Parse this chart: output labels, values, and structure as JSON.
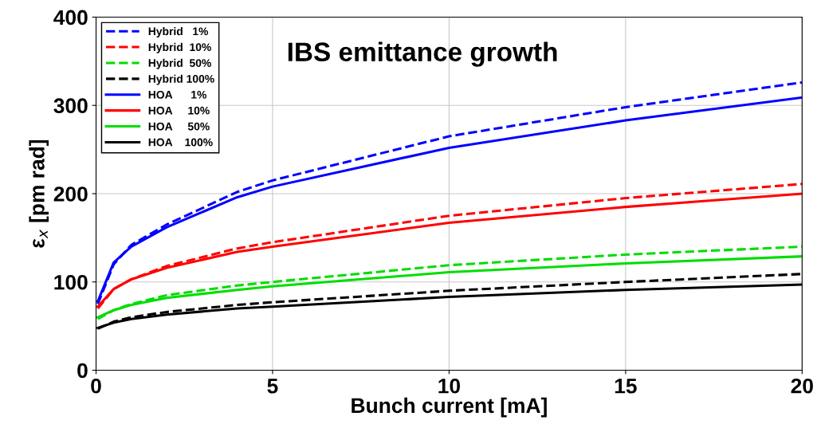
{
  "chart_data": {
    "type": "line",
    "xlabel": "Bunch current [mA]",
    "ylabel": "ε$_{x}$ [pm rad]",
    "annotations": [
      "IBS emittance growth"
    ],
    "x": [
      0.05,
      0.5,
      1,
      2,
      4,
      5,
      10,
      15,
      20
    ],
    "xlim": [
      0,
      20
    ],
    "xticks": [
      0,
      5,
      10,
      15,
      20
    ],
    "ylim": [
      0,
      400
    ],
    "yticks": [
      0,
      100,
      200,
      300,
      400
    ],
    "grid": true,
    "legend": "top left",
    "marker": "none",
    "series": [
      {
        "name": "Hybrid   1%",
        "color": "#0000ff",
        "line_style": "dashed",
        "values": [
          75,
          120,
          142,
          165,
          202,
          215,
          265,
          298,
          326
        ]
      },
      {
        "name": "Hybrid  10%",
        "color": "#ff0000",
        "line_style": "dashed",
        "values": [
          70,
          92,
          103,
          118,
          138,
          145,
          175,
          195,
          211
        ]
      },
      {
        "name": "Hybrid  50%",
        "color": "#00dd00",
        "line_style": "dashed",
        "values": [
          58,
          68,
          75,
          85,
          96,
          100,
          119,
          131,
          140
        ]
      },
      {
        "name": "Hybrid 100%",
        "color": "#000000",
        "line_style": "dashed",
        "values": [
          47,
          55,
          60,
          66,
          74,
          77,
          90,
          100,
          109
        ]
      },
      {
        "name": "HOA      1%",
        "color": "#0000ff",
        "line_style": "solid",
        "values": [
          78,
          122,
          140,
          162,
          196,
          208,
          252,
          283,
          309
        ]
      },
      {
        "name": "HOA     10%",
        "color": "#ff0000",
        "line_style": "solid",
        "values": [
          72,
          92,
          103,
          116,
          134,
          140,
          167,
          185,
          200
        ]
      },
      {
        "name": "HOA     50%",
        "color": "#00dd00",
        "line_style": "solid",
        "values": [
          60,
          68,
          74,
          82,
          91,
          95,
          111,
          121,
          129
        ]
      },
      {
        "name": "HOA    100%",
        "color": "#000000",
        "line_style": "solid",
        "values": [
          48,
          54,
          58,
          63,
          70,
          72,
          83,
          91,
          97
        ]
      }
    ]
  }
}
